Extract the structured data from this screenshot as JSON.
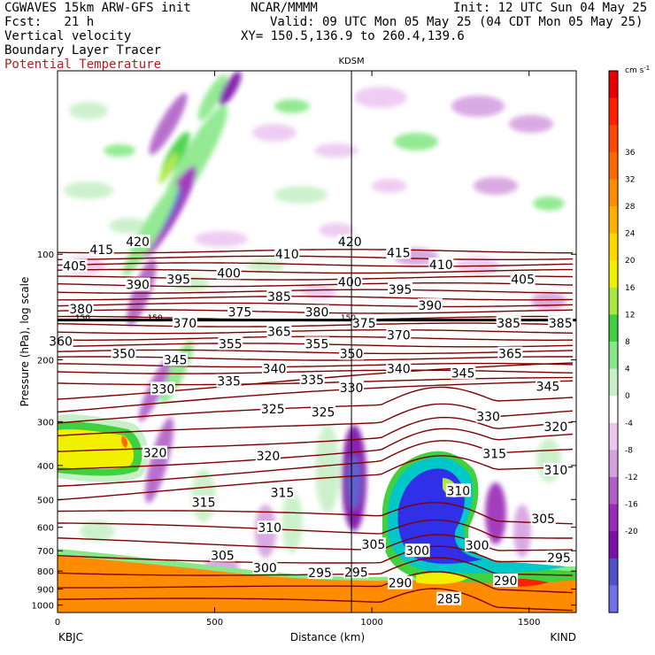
{
  "header": {
    "model": "CGWAVES 15km ARW-GFS init",
    "org": "NCAR/MMMM",
    "init": "Init: 12 UTC Sun 04 May 25",
    "fcst": "Fcst:   21 h",
    "valid": "Valid: 09 UTC Mon 05 May 25 (04 CDT Mon 05 May 25)",
    "field1": "Vertical velocity",
    "field2": "Boundary Layer Tracer",
    "field3": "Potential Temperature",
    "xy": "XY= 150.5,136.9 to 260.4,139.6"
  },
  "colors": {
    "theta": "#800000",
    "field3_text": "#b02020",
    "colorbar": [
      "#7070e8",
      "#5050c8",
      "#7a10a8",
      "#9a2ab8",
      "#b060c8",
      "#d6a0e0",
      "#ecc8f0",
      "#ffffff",
      "#c8f0c8",
      "#88e888",
      "#40d040",
      "#a8e840",
      "#f0f000",
      "#ffd800",
      "#ffb000",
      "#ff8c00",
      "#ff6a00",
      "#ff4800",
      "#ff2000",
      "#e60000"
    ]
  },
  "chart_data": {
    "type": "cross-section",
    "title": "KDSM",
    "xlabel": "Distance (km)",
    "ylabel": "Pressure (hPa), log scale",
    "xlim": [
      0,
      1650
    ],
    "ylim": [
      1050,
      30
    ],
    "x_ticks": [
      0,
      500,
      1000,
      1500
    ],
    "y_ticks": [
      100,
      200,
      300,
      400,
      500,
      600,
      700,
      800,
      900,
      1000
    ],
    "x_end_labels": {
      "left": "KBJC",
      "right": "KIND"
    },
    "vertical_marker": {
      "label": "KDSM",
      "x": 935
    },
    "colorbar": {
      "unit": "cm s",
      "unit_sup": "-1",
      "levels": [
        -20,
        -16,
        -12,
        -8,
        -4,
        0,
        4,
        8,
        12,
        16,
        20,
        24,
        28,
        32,
        36
      ]
    },
    "theta_labels": [
      {
        "text": "420",
        "x": 255,
        "p": 92
      },
      {
        "text": "420",
        "x": 930,
        "p": 92
      },
      {
        "text": "415",
        "x": 140,
        "p": 97
      },
      {
        "text": "415",
        "x": 1085,
        "p": 99
      },
      {
        "text": "410",
        "x": 730,
        "p": 100
      },
      {
        "text": "410",
        "x": 1220,
        "p": 107
      },
      {
        "text": "405",
        "x": 55,
        "p": 108
      },
      {
        "text": "405",
        "x": 1480,
        "p": 118
      },
      {
        "text": "400",
        "x": 545,
        "p": 113
      },
      {
        "text": "400",
        "x": 930,
        "p": 120
      },
      {
        "text": "395",
        "x": 385,
        "p": 118
      },
      {
        "text": "395",
        "x": 1090,
        "p": 126
      },
      {
        "text": "390",
        "x": 255,
        "p": 122
      },
      {
        "text": "390",
        "x": 1185,
        "p": 140
      },
      {
        "text": "385",
        "x": 705,
        "p": 132
      },
      {
        "text": "385",
        "x": 1435,
        "p": 157
      },
      {
        "text": "385",
        "x": 1600,
        "p": 157
      },
      {
        "text": "380",
        "x": 75,
        "p": 143
      },
      {
        "text": "380",
        "x": 825,
        "p": 146
      },
      {
        "text": "375",
        "x": 580,
        "p": 146
      },
      {
        "text": "375",
        "x": 975,
        "p": 157
      },
      {
        "text": "370",
        "x": 405,
        "p": 157
      },
      {
        "text": "370",
        "x": 1085,
        "p": 170
      },
      {
        "text": "365",
        "x": 705,
        "p": 166
      },
      {
        "text": "365",
        "x": 1440,
        "p": 192
      },
      {
        "text": "360",
        "x": 10,
        "p": 177
      },
      {
        "text": "355",
        "x": 550,
        "p": 180
      },
      {
        "text": "355",
        "x": 825,
        "p": 180
      },
      {
        "text": "350",
        "x": 210,
        "p": 192
      },
      {
        "text": "350",
        "x": 935,
        "p": 192
      },
      {
        "text": "345",
        "x": 375,
        "p": 200
      },
      {
        "text": "345",
        "x": 1290,
        "p": 218
      },
      {
        "text": "345",
        "x": 1560,
        "p": 238
      },
      {
        "text": "340",
        "x": 690,
        "p": 212
      },
      {
        "text": "340",
        "x": 1085,
        "p": 212
      },
      {
        "text": "335",
        "x": 545,
        "p": 230
      },
      {
        "text": "335",
        "x": 810,
        "p": 228
      },
      {
        "text": "330",
        "x": 335,
        "p": 242
      },
      {
        "text": "330",
        "x": 935,
        "p": 240
      },
      {
        "text": "330",
        "x": 1370,
        "p": 290
      },
      {
        "text": "325",
        "x": 685,
        "p": 276
      },
      {
        "text": "325",
        "x": 845,
        "p": 282
      },
      {
        "text": "320",
        "x": 310,
        "p": 368
      },
      {
        "text": "320",
        "x": 670,
        "p": 375
      },
      {
        "text": "320",
        "x": 1585,
        "p": 310
      },
      {
        "text": "315",
        "x": 465,
        "p": 510
      },
      {
        "text": "315",
        "x": 715,
        "p": 478
      },
      {
        "text": "315",
        "x": 1390,
        "p": 370
      },
      {
        "text": "310",
        "x": 675,
        "p": 602
      },
      {
        "text": "310",
        "x": 1275,
        "p": 472
      },
      {
        "text": "310",
        "x": 1585,
        "p": 412
      },
      {
        "text": "305",
        "x": 525,
        "p": 722
      },
      {
        "text": "305",
        "x": 1005,
        "p": 672
      },
      {
        "text": "305",
        "x": 1545,
        "p": 568
      },
      {
        "text": "300",
        "x": 660,
        "p": 782
      },
      {
        "text": "300",
        "x": 1145,
        "p": 700
      },
      {
        "text": "300",
        "x": 1335,
        "p": 675
      },
      {
        "text": "295",
        "x": 835,
        "p": 808
      },
      {
        "text": "295",
        "x": 950,
        "p": 805
      },
      {
        "text": "295",
        "x": 1595,
        "p": 732
      },
      {
        "text": "290",
        "x": 1090,
        "p": 865
      },
      {
        "text": "290",
        "x": 1425,
        "p": 852
      },
      {
        "text": "285",
        "x": 1245,
        "p": 960
      }
    ],
    "trop_150_marks": [
      {
        "text": "150",
        "x": 80,
        "p": 151
      },
      {
        "text": "150",
        "x": 310,
        "p": 151
      },
      {
        "text": "150",
        "x": 925,
        "p": 151
      }
    ]
  }
}
